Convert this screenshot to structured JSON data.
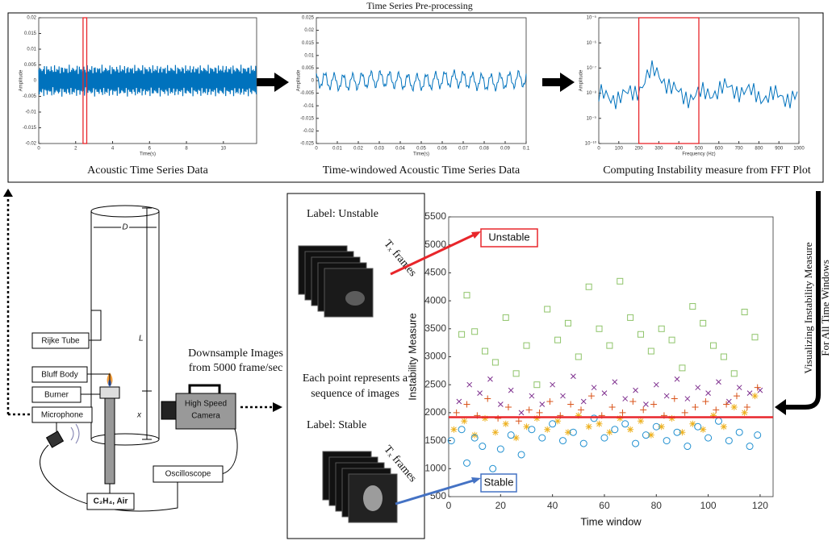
{
  "header": {
    "title": "Time Series Pre-processing"
  },
  "panels": [
    {
      "caption": "Acoustic Time Series Data",
      "xlabel": "Time(s)",
      "ylabel": "Amplitude",
      "xlim": [
        0,
        11.8
      ],
      "ylim": [
        -0.02,
        0.02
      ],
      "xticks": [
        0,
        2,
        4,
        6,
        8,
        10
      ],
      "yticks": [
        0.02,
        0.015,
        0.01,
        0.005,
        0,
        -0.005,
        -0.01,
        -0.015,
        -0.02
      ],
      "window": [
        2.4,
        2.6
      ]
    },
    {
      "caption": "Time-windowed Acoustic Time Series Data",
      "xlabel": "Time(s)",
      "ylabel": "Amplitude",
      "xlim": [
        0,
        0.1
      ],
      "ylim": [
        -0.025,
        0.025
      ],
      "xticks": [
        0,
        0.01,
        0.02,
        0.03,
        0.04,
        0.05,
        0.06,
        0.07,
        0.08,
        0.09,
        0.1
      ],
      "yticks": [
        0.025,
        0.02,
        0.015,
        0.01,
        0.005,
        0,
        -0.005,
        -0.01,
        -0.015,
        -0.02,
        -0.025
      ]
    },
    {
      "caption": "Computing Instability measure from FFT Plot",
      "xlabel": "Frequency (Hz)",
      "ylabel": "Amplitude",
      "log": true,
      "xlim": [
        0,
        1000
      ],
      "ylim": [
        1e-10,
        1e-05
      ],
      "xticks": [
        0,
        100,
        200,
        300,
        400,
        500,
        600,
        700,
        800,
        900,
        1000
      ],
      "yticks": [
        {
          "value": 1e-05,
          "label": "10⁻⁵"
        },
        {
          "value": 1e-06,
          "label": "10⁻⁶"
        },
        {
          "value": 1e-07,
          "label": "10⁻⁷"
        },
        {
          "value": 1e-08,
          "label": "10⁻⁸"
        },
        {
          "value": 1e-09,
          "label": "10⁻⁹"
        },
        {
          "value": 1e-10,
          "label": "10⁻¹⁰"
        }
      ],
      "window": [
        200,
        500
      ]
    }
  ],
  "side_text": [
    "Visualizing  Instability  Measure",
    "For All  Time Windows"
  ],
  "setup": {
    "rijke": "Rijke Tube",
    "bluff": "Bluff Body",
    "burner": "Burner",
    "mic": "Microphone",
    "d": "D",
    "l": "L",
    "x": "x",
    "fuel": "C₂H₄, Air",
    "camera": [
      "High Speed",
      "Camera"
    ],
    "scope": "Oscilloscope"
  },
  "middle": {
    "downsample": [
      "Downsample Images",
      "from 5000 frame/sec"
    ],
    "each": [
      "Each point represents a",
      "sequence of images"
    ],
    "unstable_label": "Label:  Unstable",
    "stable_label": "Label:  Stable",
    "frames": "Tₓ  frames"
  },
  "chart_data": {
    "type": "scatter",
    "xlabel": "Time window",
    "ylabel": "Instability Measure",
    "xlim": [
      0,
      125
    ],
    "ylim": [
      500,
      5500
    ],
    "xticks": [
      0,
      20,
      40,
      60,
      80,
      100,
      120
    ],
    "yticks": [
      500,
      1000,
      1500,
      2000,
      2500,
      3000,
      3500,
      4000,
      4500,
      5000,
      5500
    ],
    "threshold": 1920,
    "threshold_color": "#e8262b",
    "annotations": [
      "Unstable",
      "Stable"
    ],
    "series": [
      {
        "color": "#8fc46a",
        "marker": "square",
        "x": [
          5,
          7,
          10,
          14,
          18,
          22,
          26,
          30,
          34,
          38,
          42,
          46,
          50,
          54,
          58,
          62,
          66,
          70,
          74,
          78,
          82,
          86,
          90,
          94,
          98,
          102,
          106,
          110,
          114,
          118
        ],
        "values": [
          3400,
          4100,
          3450,
          3100,
          2900,
          3700,
          2700,
          3200,
          2500,
          3850,
          3300,
          3600,
          3000,
          4250,
          3500,
          3200,
          4350,
          3700,
          3400,
          3100,
          3500,
          3300,
          2800,
          3900,
          3600,
          3200,
          3000,
          2700,
          3800,
          3350
        ]
      },
      {
        "color": "#7e2f8e",
        "marker": "x",
        "x": [
          4,
          8,
          12,
          16,
          20,
          24,
          28,
          32,
          36,
          40,
          44,
          48,
          52,
          56,
          60,
          64,
          68,
          72,
          76,
          80,
          84,
          88,
          92,
          96,
          100,
          104,
          108,
          112,
          116,
          120
        ],
        "values": [
          2200,
          2500,
          2350,
          2600,
          2150,
          2400,
          2000,
          2300,
          2150,
          2500,
          2300,
          2650,
          2200,
          2450,
          2350,
          2550,
          2250,
          2400,
          2150,
          2500,
          2300,
          2600,
          2250,
          2450,
          2350,
          2550,
          2200,
          2450,
          2350,
          2400
        ]
      },
      {
        "color": "#d95319",
        "marker": "plus",
        "x": [
          3,
          7,
          11,
          15,
          19,
          23,
          27,
          31,
          35,
          39,
          43,
          47,
          51,
          55,
          59,
          63,
          67,
          71,
          75,
          79,
          83,
          87,
          91,
          95,
          99,
          103,
          107,
          111,
          115,
          119
        ],
        "values": [
          2000,
          2150,
          1950,
          2250,
          1900,
          2100,
          1850,
          2050,
          2000,
          2200,
          1950,
          2150,
          2050,
          2300,
          1950,
          2100,
          2000,
          2200,
          2050,
          2150,
          1950,
          2250,
          2000,
          2100,
          2200,
          2050,
          2150,
          2300,
          2100,
          2450
        ]
      },
      {
        "color": "#edb120",
        "marker": "star",
        "x": [
          2,
          6,
          10,
          14,
          18,
          22,
          26,
          30,
          34,
          38,
          42,
          46,
          50,
          54,
          58,
          62,
          66,
          70,
          74,
          78,
          82,
          86,
          90,
          94,
          98,
          102,
          106,
          110,
          114,
          118
        ],
        "values": [
          1700,
          1850,
          1600,
          1900,
          1650,
          1800,
          1550,
          1750,
          1900,
          1700,
          1850,
          1650,
          1950,
          1750,
          1800,
          1650,
          1900,
          1700,
          1850,
          1600,
          1750,
          1900,
          1650,
          1800,
          1700,
          1950,
          1750,
          2100,
          2000,
          2300
        ]
      },
      {
        "color": "#1f8fd0",
        "marker": "circle",
        "x": [
          1,
          5,
          7,
          10,
          13,
          17,
          20,
          24,
          28,
          32,
          36,
          40,
          44,
          48,
          52,
          56,
          60,
          64,
          68,
          72,
          76,
          80,
          84,
          88,
          92,
          96,
          100,
          104,
          108,
          112,
          116,
          119
        ],
        "values": [
          1500,
          1700,
          1100,
          1550,
          1400,
          1000,
          1350,
          1600,
          1250,
          1700,
          1550,
          1800,
          1500,
          1650,
          1450,
          1900,
          1550,
          1700,
          1800,
          1450,
          1600,
          1750,
          1500,
          1650,
          1400,
          1750,
          1550,
          1850,
          1500,
          1650,
          1400,
          1600
        ]
      }
    ]
  }
}
